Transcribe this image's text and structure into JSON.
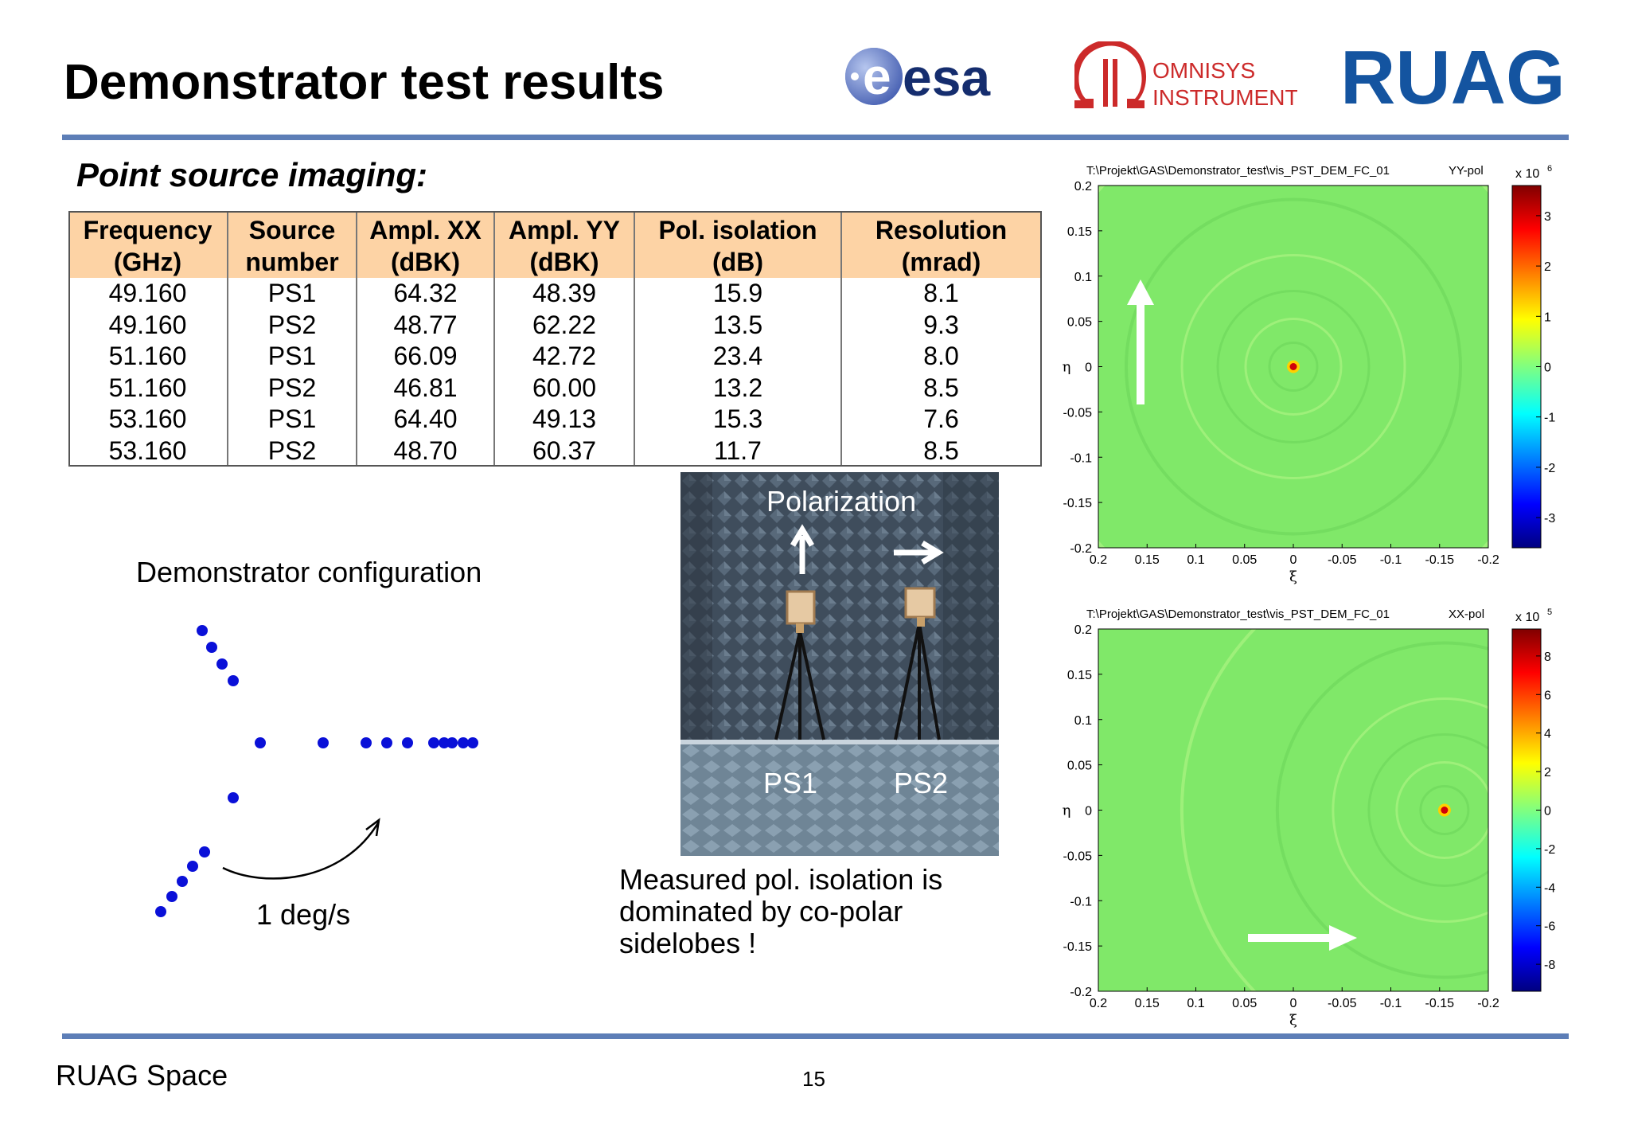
{
  "header": {
    "title": "Demonstrator test results",
    "logos": {
      "esa": "esa",
      "omnisys_line1": "OMNISYS",
      "omnisys_line2": "INSTRUMENTS",
      "ruag": "RUAG"
    }
  },
  "section": {
    "subtitle": "Point source imaging:"
  },
  "table": {
    "headers": [
      [
        "Frequency",
        "(GHz)"
      ],
      [
        "Source",
        "number"
      ],
      [
        "Ampl. XX",
        "(dBK)"
      ],
      [
        "Ampl. YY",
        "(dBK)"
      ],
      [
        "Pol. isolation",
        "(dB)"
      ],
      [
        "Resolution",
        "(mrad)"
      ]
    ],
    "rows": [
      [
        "49.160",
        "PS1",
        "64.32",
        "48.39",
        "15.9",
        "8.1"
      ],
      [
        "49.160",
        "PS2",
        "48.77",
        "62.22",
        "13.5",
        "9.3"
      ],
      [
        "51.160",
        "PS1",
        "66.09",
        "42.72",
        "23.4",
        "8.0"
      ],
      [
        "51.160",
        "PS2",
        "46.81",
        "60.00",
        "13.2",
        "8.5"
      ],
      [
        "53.160",
        "PS1",
        "64.40",
        "49.13",
        "15.3",
        "7.6"
      ],
      [
        "53.160",
        "PS2",
        "48.70",
        "60.37",
        "11.7",
        "8.5"
      ]
    ],
    "header_color": "#fdd3a5"
  },
  "configuration": {
    "label": "Demonstrator configuration",
    "rate_label": "1 deg/s",
    "dot_color": "#0a10d8"
  },
  "photo": {
    "polarization_label": "Polarization",
    "ps1_label": "PS1",
    "ps2_label": "PS2"
  },
  "note": {
    "line1": "Measured pol. isolation is",
    "line2": "dominated by co-polar",
    "line3": "sidelobes !"
  },
  "plots": {
    "yy": {
      "path_label": "T:\\Projekt\\GAS\\Demonstrator_test\\vis_PST_DEM_FC_01",
      "pol_label": "YY-pol",
      "scale_label": "x 10",
      "scale_exp": "6",
      "colorbar_ticks": [
        "3",
        "2",
        "1",
        "0",
        "-1",
        "-2",
        "-3"
      ],
      "source_position": [
        0.0,
        0.0
      ]
    },
    "xx": {
      "path_label": "T:\\Projekt\\GAS\\Demonstrator_test\\vis_PST_DEM_FC_01",
      "pol_label": "XX-pol",
      "scale_label": "x 10",
      "scale_exp": "5",
      "colorbar_ticks": [
        "8",
        "6",
        "4",
        "2",
        "0",
        "-2",
        "-4",
        "-6",
        "-8"
      ],
      "source_position": [
        -0.155,
        0.0
      ]
    },
    "x_ticks": [
      "0.2",
      "0.15",
      "0.1",
      "0.05",
      "0",
      "-0.05",
      "-0.1",
      "-0.15",
      "-0.2"
    ],
    "y_ticks": [
      "0.2",
      "0.15",
      "0.1",
      "0.05",
      "0",
      "-0.05",
      "-0.1",
      "-0.15",
      "-0.2"
    ],
    "xlabel": "ξ",
    "ylabel": "η",
    "background_color": "#80e869"
  },
  "footer": {
    "company": "RUAG Space",
    "page_number": "15"
  }
}
